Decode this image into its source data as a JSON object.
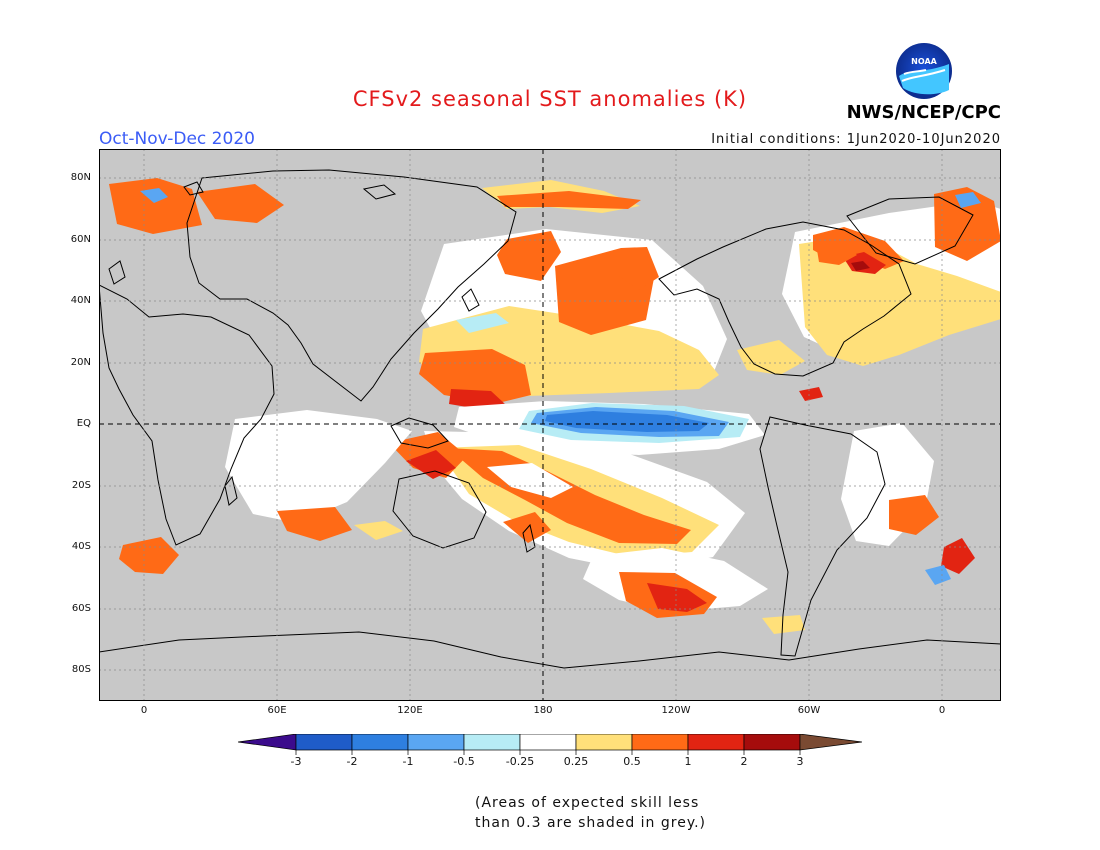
{
  "header": {
    "title": "CFSv2 seasonal SST anomalies (K)",
    "period": "Oct-Nov-Dec 2020",
    "initial_conditions": "Initial conditions: 1Jun2020-10Jun2020",
    "agency": "NWS/NCEP/CPC",
    "logo_text": "NOAA"
  },
  "map": {
    "background_color": "#c8c8c8",
    "coastline_color": "#000000",
    "lat_labels": [
      "80N",
      "60N",
      "40N",
      "20N",
      "EQ",
      "20S",
      "40S",
      "60S",
      "80S"
    ],
    "lon_labels": [
      "0",
      "60E",
      "120E",
      "180",
      "120W",
      "60W",
      "0"
    ],
    "reference_lines": {
      "equator": "dashed",
      "dateline": "dashed"
    }
  },
  "colorbar": {
    "values": [
      "-3",
      "-2",
      "-1",
      "-0.5",
      "-0.25",
      "0.25",
      "0.5",
      "1",
      "2",
      "3"
    ],
    "colors": [
      "#3b0b8c",
      "#1f5cc8",
      "#2e7fe0",
      "#5aa6f2",
      "#b7ecf5",
      "#ffffff",
      "#ffe07a",
      "#ff6a16",
      "#e22412",
      "#a50c0c",
      "#7a4a32"
    ]
  },
  "note": {
    "line1": "(Areas of expected skill less",
    "line2": "than 0.3 are shaded in grey.)"
  }
}
